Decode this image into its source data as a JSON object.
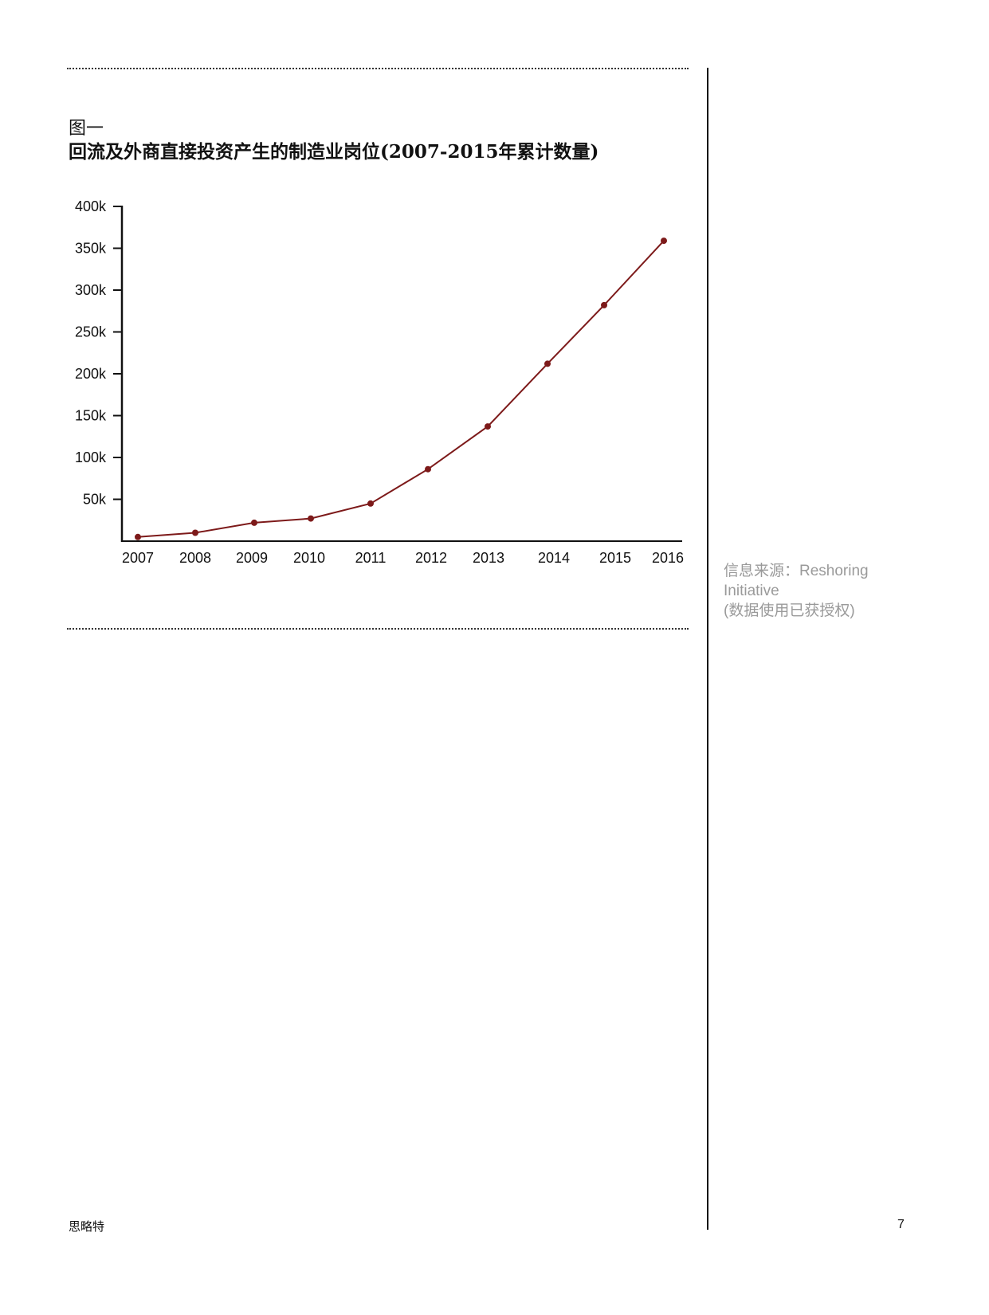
{
  "figure": {
    "label": "图一",
    "title": "回流及外商直接投资产生的制造业岗位(2007-2015年累计数量)"
  },
  "source_note": {
    "line1": "信息来源：Reshoring",
    "line2": "Initiative",
    "line3": "(数据使用已获授权)"
  },
  "footer": {
    "brand": "思略特",
    "page_number": "7"
  },
  "colors": {
    "series_line": "#7d1a1a",
    "axis": "#111111",
    "source_text": "#9a9a9a"
  },
  "chart_data": {
    "type": "line",
    "title": "",
    "xlabel": "",
    "ylabel": "",
    "x": [
      "2007",
      "2008",
      "2009",
      "2010",
      "2011",
      "2012",
      "2013",
      "2014",
      "2015",
      "2016"
    ],
    "values": [
      5000,
      10000,
      22000,
      27000,
      45000,
      86000,
      137000,
      212000,
      282000,
      359000
    ],
    "ylim": [
      0,
      400000
    ],
    "yticks": [
      {
        "value": 50000,
        "label": "50k"
      },
      {
        "value": 100000,
        "label": "100k"
      },
      {
        "value": 150000,
        "label": "150k"
      },
      {
        "value": 200000,
        "label": "200k"
      },
      {
        "value": 250000,
        "label": "250k"
      },
      {
        "value": 300000,
        "label": "300k"
      },
      {
        "value": 350000,
        "label": "350k"
      },
      {
        "value": 400000,
        "label": "400k"
      }
    ],
    "grid": false,
    "legend": "none",
    "markers": true
  }
}
